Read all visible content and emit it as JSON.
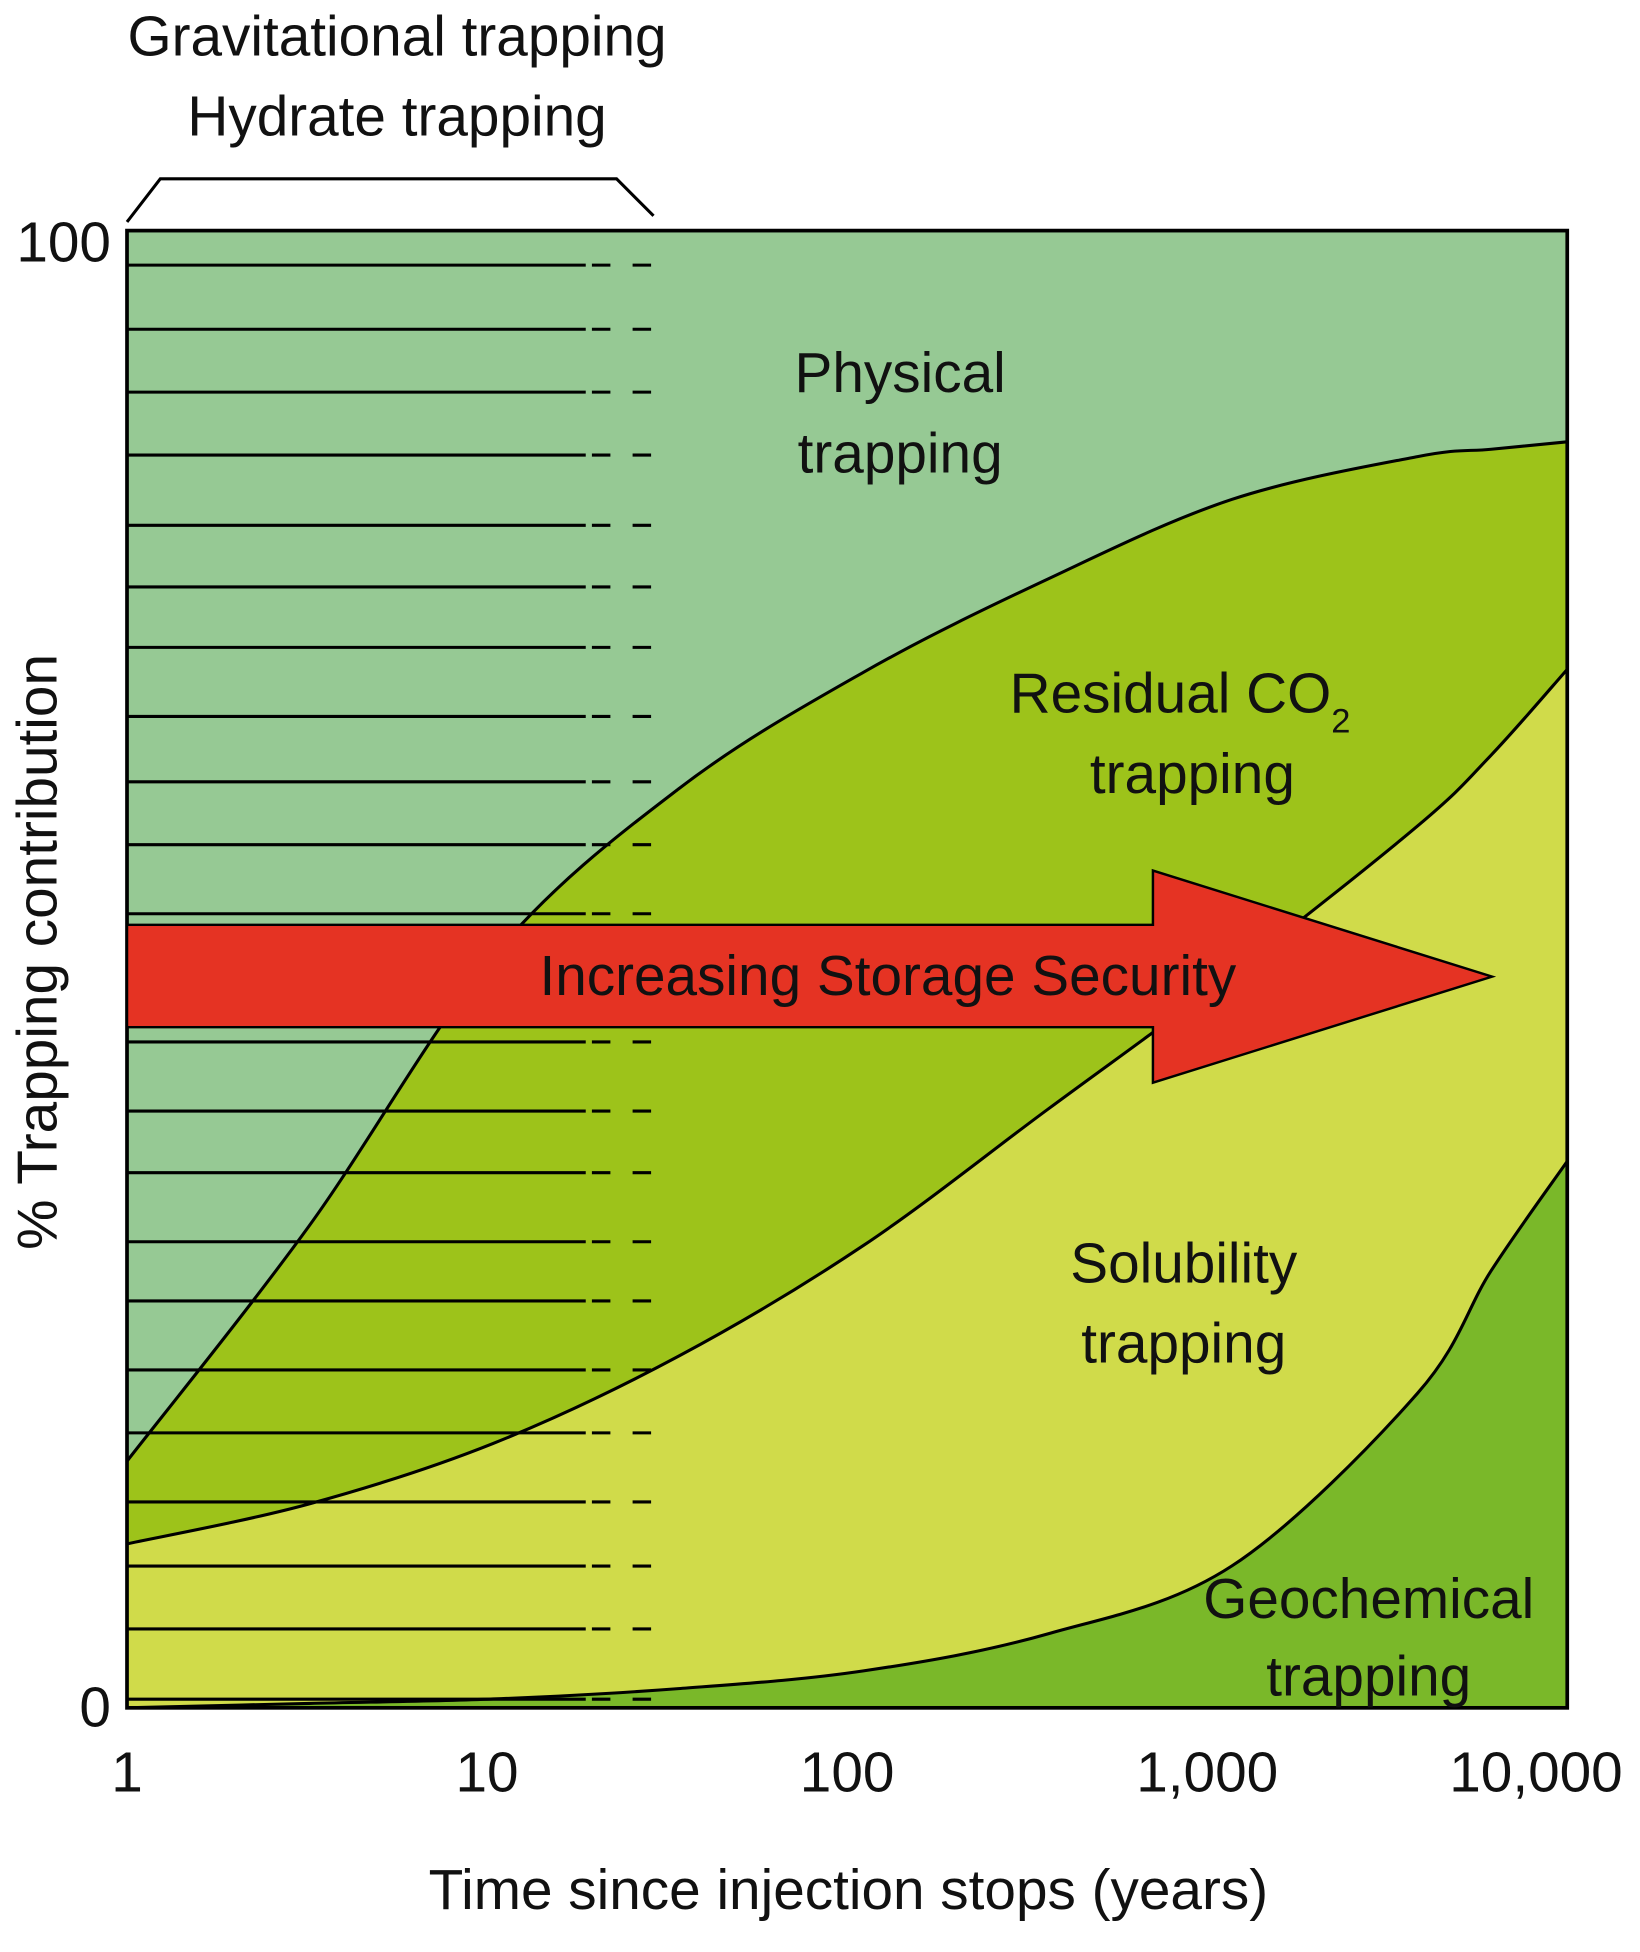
{
  "chart_data": {
    "type": "area",
    "stacked": true,
    "title": "",
    "xlabel": "Time since injection stops (years)",
    "ylabel": "% Trapping contribution",
    "x_scale": "log",
    "xlim": [
      1,
      10000
    ],
    "ylim": [
      0,
      100
    ],
    "x_ticks": [
      "1",
      "10",
      "100",
      "1,000",
      "10,000"
    ],
    "x_tick_values": [
      1,
      10,
      100,
      1000,
      10000
    ],
    "y_ticks": [
      "0",
      "100"
    ],
    "y_tick_values": [
      0,
      100
    ],
    "grid": false,
    "x": [
      1,
      3.2,
      10.4,
      34,
      111,
      360,
      1170,
      3840,
      6150,
      10000
    ],
    "boundaries": {
      "geochemical_top": [
        0,
        0.3,
        0.6,
        1.3,
        2.5,
        5,
        9.6,
        21.3,
        29.6,
        37
      ],
      "solubility_top": [
        11.1,
        13.8,
        17.9,
        23.8,
        31.3,
        40.5,
        49.7,
        59.7,
        64.5,
        70.3
      ],
      "residual_top": [
        16.7,
        32.6,
        50.9,
        62.2,
        70.1,
        76.4,
        81.8,
        84.7,
        85.2,
        85.7
      ]
    },
    "regions": [
      {
        "name": "Geochemical trapping",
        "label_line1": "Geochemical",
        "label_line2": "trapping",
        "color": "#7ab829"
      },
      {
        "name": "Solubility trapping",
        "label_line1": "Solubility",
        "label_line2": "trapping",
        "color": "#d0db4a"
      },
      {
        "name": "Residual CO2 trapping",
        "label_line1": "Residual CO",
        "label_sub": "2",
        "label_line2": "trapping",
        "color": "#9dc31a"
      },
      {
        "name": "Physical trapping",
        "label_line1": "Physical",
        "label_line2": "trapping",
        "color": "#96c994"
      }
    ],
    "annotations": {
      "bracket_line1": "Gravitational trapping",
      "bracket_line2": "Hydrate trapping",
      "bracket_x_range": [
        1,
        29
      ],
      "arrow_label": "Increasing Storage Security",
      "arrow_color": "#e53323"
    }
  }
}
